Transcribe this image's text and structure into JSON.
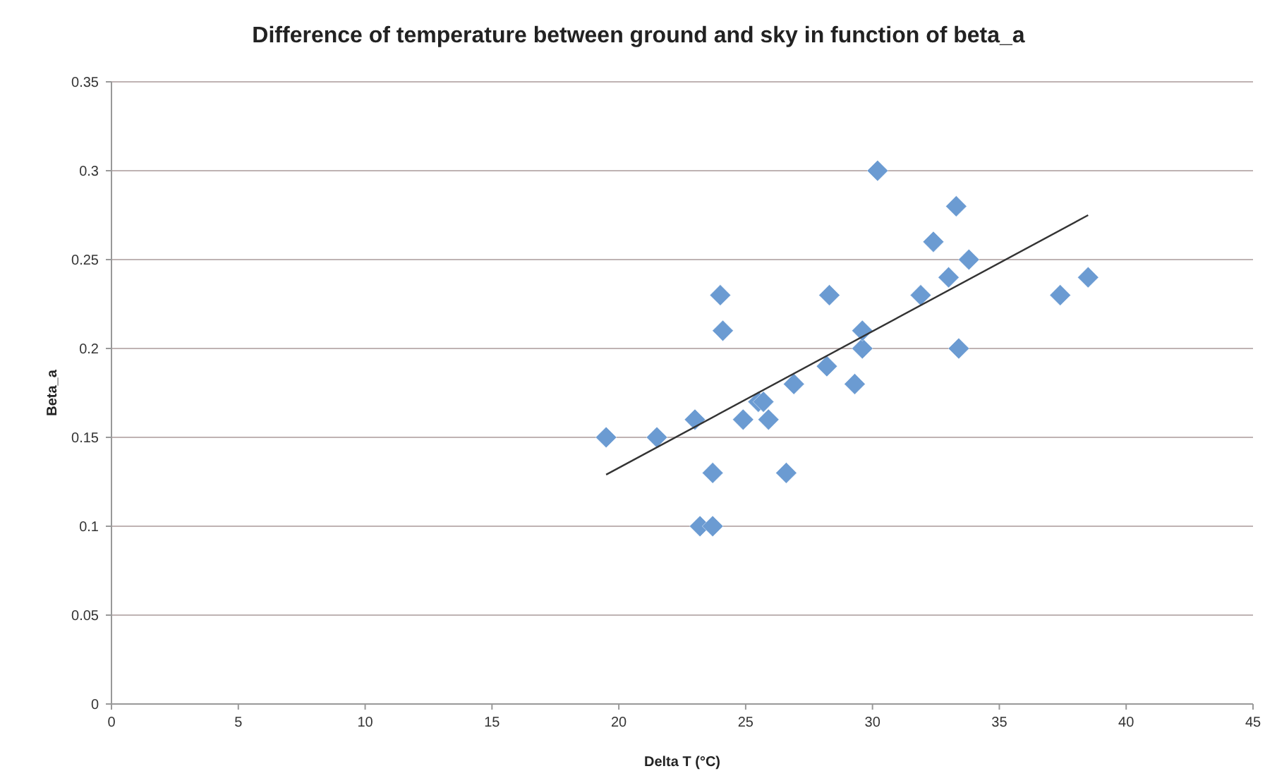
{
  "chart_data": {
    "type": "scatter",
    "title": "Difference of temperature between ground and sky in function of beta_a",
    "xlabel": "Delta T (°C)",
    "ylabel": "Beta_a",
    "xlim": [
      0,
      45
    ],
    "xticks": [
      0,
      5,
      10,
      15,
      20,
      25,
      30,
      35,
      40,
      45
    ],
    "ylim": [
      0,
      0.35
    ],
    "yticks": [
      {
        "value": 0,
        "label": "0"
      },
      {
        "value": 0.05,
        "label": "0.05"
      },
      {
        "value": 0.1,
        "label": "0.1"
      },
      {
        "value": 0.15,
        "label": "0.15"
      },
      {
        "value": 0.2,
        "label": "0.2"
      },
      {
        "value": 0.25,
        "label": "0.25"
      },
      {
        "value": 0.3,
        "label": "0.3"
      },
      {
        "value": 0.35,
        "label": "0.35"
      }
    ],
    "grid": "y",
    "marker": "diamond",
    "series": [
      {
        "color": "#6b9bd2",
        "x": [
          19.5,
          21.5,
          23.0,
          23.2,
          23.7,
          23.7,
          24.0,
          24.1,
          24.9,
          25.5,
          25.7,
          25.9,
          26.6,
          26.9,
          28.2,
          28.3,
          29.3,
          29.6,
          29.6,
          30.2,
          31.9,
          32.4,
          33.0,
          33.3,
          33.4,
          33.8,
          37.4,
          38.5
        ],
        "values": [
          0.15,
          0.15,
          0.16,
          0.1,
          0.1,
          0.13,
          0.23,
          0.21,
          0.16,
          0.17,
          0.17,
          0.16,
          0.13,
          0.18,
          0.19,
          0.23,
          0.18,
          0.2,
          0.21,
          0.3,
          0.23,
          0.26,
          0.24,
          0.28,
          0.2,
          0.25,
          0.23,
          0.24
        ]
      },
      {
        "type": "line",
        "color": "#333333",
        "marker": "none",
        "x": [
          19.5,
          38.5
        ],
        "values": [
          0.129,
          0.275
        ]
      }
    ]
  }
}
